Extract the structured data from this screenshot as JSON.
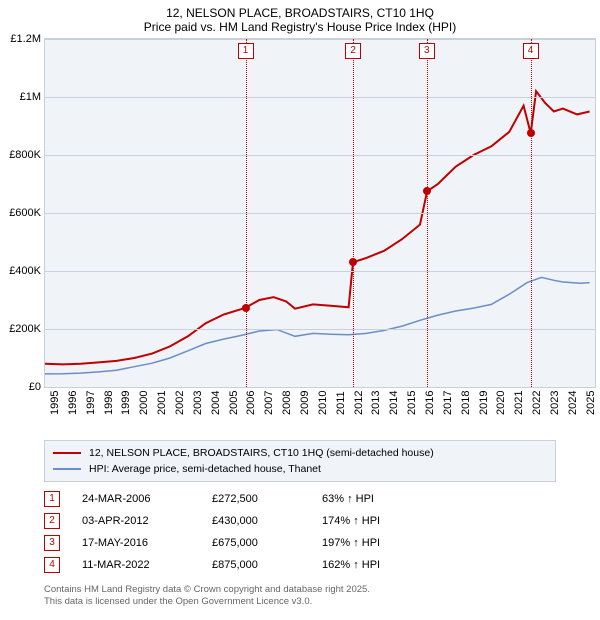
{
  "title": {
    "line1": "12, NELSON PLACE, BROADSTAIRS, CT10 1HQ",
    "line2": "Price paid vs. HM Land Registry's House Price Index (HPI)"
  },
  "chart": {
    "type": "line",
    "background_color": "#f0f3f8",
    "grid_color": "#c8d0dc",
    "y": {
      "min": 0,
      "max": 1200000,
      "ticks": [
        0,
        200000,
        400000,
        600000,
        800000,
        1000000,
        1200000
      ],
      "tick_labels": [
        "£0",
        "£200K",
        "£400K",
        "£600K",
        "£800K",
        "£1M",
        "£1.2M"
      ],
      "label_fontsize": 11,
      "label_color": "#000000"
    },
    "x": {
      "min": 1995,
      "max": 2025.8,
      "ticks": [
        1995,
        1996,
        1997,
        1998,
        1999,
        2000,
        2001,
        2002,
        2003,
        2004,
        2005,
        2006,
        2007,
        2008,
        2009,
        2010,
        2011,
        2012,
        2013,
        2014,
        2015,
        2016,
        2017,
        2018,
        2019,
        2020,
        2021,
        2022,
        2023,
        2024,
        2025
      ],
      "label_fontsize": 11,
      "label_color": "#000000",
      "label_rotation": -90
    },
    "series": [
      {
        "name": "12, NELSON PLACE, BROADSTAIRS, CT10 1HQ (semi-detached house)",
        "color": "#c00000",
        "line_width": 2,
        "points": [
          [
            1995.0,
            80000
          ],
          [
            1996.0,
            78000
          ],
          [
            1997.0,
            80000
          ],
          [
            1998.0,
            85000
          ],
          [
            1999.0,
            90000
          ],
          [
            2000.0,
            100000
          ],
          [
            2001.0,
            115000
          ],
          [
            2002.0,
            140000
          ],
          [
            2003.0,
            175000
          ],
          [
            2004.0,
            220000
          ],
          [
            2005.0,
            250000
          ],
          [
            2006.2,
            272500
          ],
          [
            2007.0,
            300000
          ],
          [
            2007.8,
            310000
          ],
          [
            2008.5,
            295000
          ],
          [
            2009.0,
            270000
          ],
          [
            2010.0,
            285000
          ],
          [
            2011.0,
            280000
          ],
          [
            2012.0,
            275000
          ],
          [
            2012.25,
            430000
          ],
          [
            2013.0,
            445000
          ],
          [
            2014.0,
            470000
          ],
          [
            2015.0,
            510000
          ],
          [
            2016.0,
            560000
          ],
          [
            2016.4,
            675000
          ],
          [
            2017.0,
            700000
          ],
          [
            2018.0,
            760000
          ],
          [
            2019.0,
            800000
          ],
          [
            2020.0,
            830000
          ],
          [
            2021.0,
            880000
          ],
          [
            2021.8,
            970000
          ],
          [
            2022.2,
            875000
          ],
          [
            2022.5,
            1020000
          ],
          [
            2023.0,
            980000
          ],
          [
            2023.5,
            950000
          ],
          [
            2024.0,
            960000
          ],
          [
            2024.8,
            940000
          ],
          [
            2025.5,
            950000
          ]
        ]
      },
      {
        "name": "HPI: Average price, semi-detached house, Thanet",
        "color": "#6a8fc5",
        "line_width": 1.5,
        "points": [
          [
            1995.0,
            45000
          ],
          [
            1996.0,
            46000
          ],
          [
            1997.0,
            48000
          ],
          [
            1998.0,
            52000
          ],
          [
            1999.0,
            58000
          ],
          [
            2000.0,
            70000
          ],
          [
            2001.0,
            82000
          ],
          [
            2002.0,
            100000
          ],
          [
            2003.0,
            125000
          ],
          [
            2004.0,
            150000
          ],
          [
            2005.0,
            165000
          ],
          [
            2006.0,
            178000
          ],
          [
            2007.0,
            193000
          ],
          [
            2008.0,
            198000
          ],
          [
            2009.0,
            175000
          ],
          [
            2010.0,
            185000
          ],
          [
            2011.0,
            182000
          ],
          [
            2012.0,
            180000
          ],
          [
            2013.0,
            185000
          ],
          [
            2014.0,
            195000
          ],
          [
            2015.0,
            210000
          ],
          [
            2016.0,
            230000
          ],
          [
            2017.0,
            248000
          ],
          [
            2018.0,
            262000
          ],
          [
            2019.0,
            272000
          ],
          [
            2020.0,
            285000
          ],
          [
            2021.0,
            320000
          ],
          [
            2022.0,
            360000
          ],
          [
            2022.8,
            378000
          ],
          [
            2023.5,
            368000
          ],
          [
            2024.0,
            362000
          ],
          [
            2025.0,
            358000
          ],
          [
            2025.5,
            360000
          ]
        ]
      }
    ],
    "markers": [
      {
        "n": "1",
        "x": 2006.23,
        "y": 272500
      },
      {
        "n": "2",
        "x": 2012.26,
        "y": 430000
      },
      {
        "n": "3",
        "x": 2016.38,
        "y": 675000
      },
      {
        "n": "4",
        "x": 2022.19,
        "y": 875000
      }
    ],
    "marker_dot_color": "#c00000",
    "marker_line_color": "#c00000"
  },
  "legend": {
    "items": [
      {
        "color": "#c00000",
        "width": 2.5,
        "label": "12, NELSON PLACE, BROADSTAIRS, CT10 1HQ (semi-detached house)"
      },
      {
        "color": "#6a8fc5",
        "width": 1.5,
        "label": "HPI: Average price, semi-detached house, Thanet"
      }
    ]
  },
  "sales": [
    {
      "n": "1",
      "date": "24-MAR-2006",
      "price": "£272,500",
      "hpi": "63% ↑ HPI"
    },
    {
      "n": "2",
      "date": "03-APR-2012",
      "price": "£430,000",
      "hpi": "174% ↑ HPI"
    },
    {
      "n": "3",
      "date": "17-MAY-2016",
      "price": "£675,000",
      "hpi": "197% ↑ HPI"
    },
    {
      "n": "4",
      "date": "11-MAR-2022",
      "price": "£875,000",
      "hpi": "162% ↑ HPI"
    }
  ],
  "footer": {
    "line1": "Contains HM Land Registry data © Crown copyright and database right 2025.",
    "line2": "This data is licensed under the Open Government Licence v3.0."
  }
}
